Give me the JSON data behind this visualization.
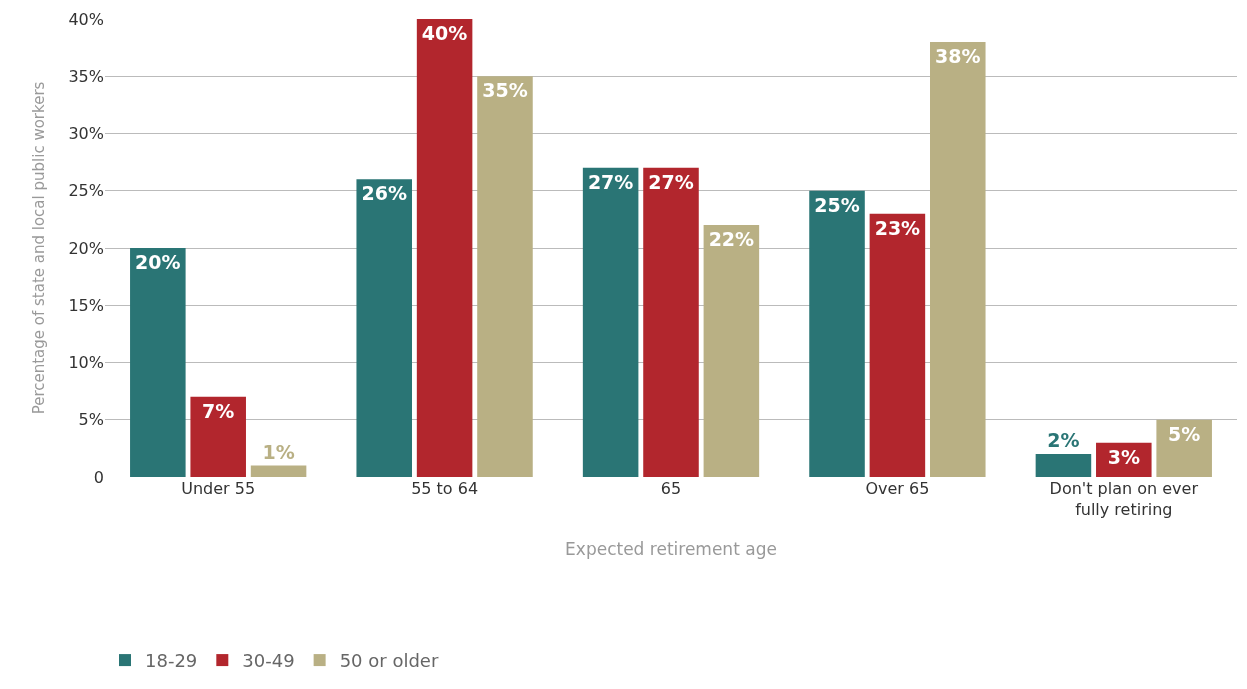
{
  "chart_data": {
    "type": "bar",
    "xlabel": "Expected retirement age",
    "ylabel": "Percentage of state and local public workers",
    "categories": [
      "Under 55",
      "55 to 64",
      "65",
      "Over 65",
      "Don't plan on ever fully retiring"
    ],
    "series": [
      {
        "name": "18-29",
        "color": "#2a7575",
        "values": [
          20,
          26,
          27,
          25,
          2
        ],
        "value_labels": [
          "20%",
          "26%",
          "27%",
          "25%",
          "2%"
        ]
      },
      {
        "name": "30-49",
        "color": "#b2262d",
        "values": [
          7,
          40,
          27,
          23,
          3
        ],
        "value_labels": [
          "7%",
          "40%",
          "27%",
          "23%",
          "3%"
        ]
      },
      {
        "name": "50 or older",
        "color": "#b9b084",
        "values": [
          1,
          35,
          22,
          38,
          5
        ],
        "value_labels": [
          "1%",
          "35%",
          "22%",
          "38%",
          "5%"
        ]
      }
    ],
    "ylim": [
      0,
      40
    ],
    "yticks": [
      0,
      {
        "value": 5,
        "label": "5%"
      },
      {
        "value": 10,
        "label": "10%"
      },
      {
        "value": 15,
        "label": "15%"
      },
      {
        "value": 20,
        "label": "20%"
      },
      {
        "value": 25,
        "label": "25%"
      },
      {
        "value": 30,
        "label": "30%"
      },
      {
        "value": 35,
        "label": "35%"
      },
      {
        "value": 40,
        "label": "40%"
      }
    ],
    "grid": "y",
    "legend": "bottom left"
  }
}
